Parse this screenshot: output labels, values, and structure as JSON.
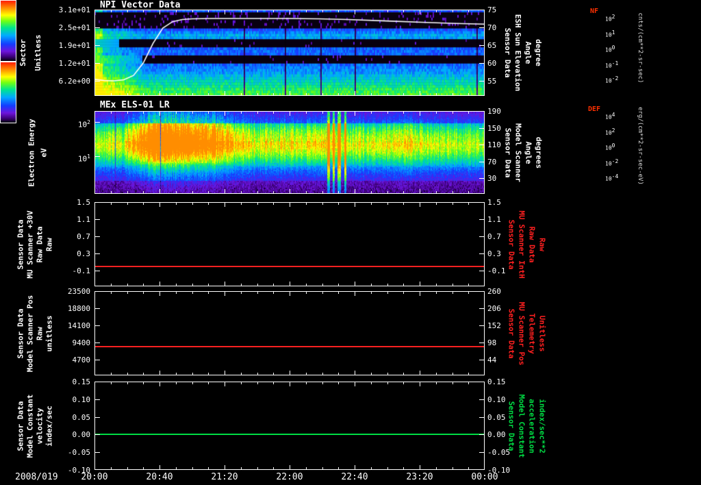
{
  "figure": {
    "date_label": "2008/019",
    "x_ticks": [
      "20:00",
      "20:40",
      "21:20",
      "22:00",
      "22:40",
      "23:20",
      "00:00"
    ]
  },
  "panels": [
    {
      "name": "npi-vector",
      "title": "NPI Vector Data",
      "left_label_lines": [
        "Sector",
        "Unitless"
      ],
      "left_ticks": [
        "3.1e+01",
        "2.5e+01",
        "1.9e+01",
        "1.2e+01",
        "6.2e+00"
      ],
      "right_ticks": [
        "75",
        "70",
        "65",
        "60",
        "55"
      ],
      "right_label_lines": [
        "Sensor Data",
        "ESH Sun Elevation",
        "Angle",
        "degree"
      ],
      "right_label_color": "#ffffff",
      "colorbar": {
        "title": "NF",
        "unit": "cnts/(cm**2-sr-sec)",
        "ticks": [
          "10^2",
          "10^1",
          "10^0",
          "10^-1",
          "10^-2"
        ]
      }
    },
    {
      "name": "els",
      "title": "MEx ELS-01 LR",
      "left_label_lines": [
        "Electron Energy",
        "eV"
      ],
      "left_ticks": [
        "10^2",
        "10^1"
      ],
      "right_ticks": [
        "190",
        "150",
        "110",
        "70",
        "30"
      ],
      "right_label_lines": [
        "Sensor Data",
        "Model Scanner",
        "Angle",
        "degrees"
      ],
      "right_label_color": "#ffffff",
      "colorbar": {
        "title": "DEF",
        "unit": "erg/(cm**2-sr-sec-eV)",
        "ticks": [
          "10^4",
          "10^2",
          "10^0",
          "10^-2",
          "10^-4"
        ]
      }
    },
    {
      "name": "mu-scanner-30v",
      "left_label_lines": [
        "Sensor Data",
        "MU Scanner +30V",
        "Raw Data",
        "Raw"
      ],
      "left_ticks": [
        "1.5",
        "1.1",
        "0.7",
        "0.3",
        "-0.1"
      ],
      "right_ticks": [
        "1.5",
        "1.1",
        "0.7",
        "0.3",
        "-0.1"
      ],
      "right_label_lines": [
        "Sensor Data",
        "MU Scanner IntH",
        "Raw Data",
        "Raw"
      ],
      "right_label_color": "#ff2020",
      "line": {
        "color": "#ff2020"
      }
    },
    {
      "name": "model-scanner-pos",
      "left_label_lines": [
        "Sensor Data",
        "Model Scanner Pos",
        "Raw",
        "unitless"
      ],
      "left_ticks": [
        "23500",
        "18800",
        "14100",
        "9400",
        "4700"
      ],
      "right_ticks": [
        "260",
        "206",
        "152",
        "98",
        "44"
      ],
      "right_label_lines": [
        "Sensor Data",
        "MU Scanner Pos",
        "Telemetry",
        "Unitless"
      ],
      "right_label_color": "#ff2020",
      "line": {
        "color": "#ff2020"
      }
    },
    {
      "name": "model-constant-velocity",
      "left_label_lines": [
        "Sensor Data",
        "Model Constant",
        "velocity",
        "index/sec"
      ],
      "left_ticks": [
        "0.15",
        "0.10",
        "0.05",
        "0.00",
        "-0.05",
        "-0.10"
      ],
      "right_ticks": [
        "0.15",
        "0.10",
        "0.05",
        "0.00",
        "-0.05",
        "-0.10"
      ],
      "right_label_lines": [
        "Sensor Data",
        "Model Constant",
        "acceleration",
        "index/sec**2"
      ],
      "right_label_color": "#00dd44",
      "line": {
        "color": "#00dd44"
      }
    }
  ],
  "chart_data": [
    {
      "type": "heatmap",
      "title": "NPI Vector Data",
      "ylabel": "Sector (Unitless)",
      "y_tick_labels": [
        "3.1e+01",
        "2.5e+01",
        "1.9e+01",
        "1.2e+01",
        "6.2e+00"
      ],
      "y2_label": "Sensor Data ESH Sun Elevation Angle (degree)",
      "y2_ticks": [
        75,
        70,
        65,
        60,
        55
      ],
      "y2_lim": [
        55,
        75
      ],
      "x_start": "2008/019 20:00",
      "x_end": "2008/020 00:00",
      "x_tick_labels": [
        "20:00",
        "20:40",
        "21:20",
        "22:00",
        "22:40",
        "23:20",
        "00:00"
      ],
      "colorbar": {
        "title": "NF",
        "unit": "cnts/(cm**2-sr-sec)",
        "scale": "log",
        "tick_labels": [
          "10^2",
          "10^1",
          "10^0",
          "10^-1",
          "10^-2"
        ]
      },
      "overlay_series": {
        "name": "ESH Sun Elevation Angle",
        "units": "degree",
        "x_hours": [
          20.0,
          20.1,
          20.2,
          20.3,
          20.4,
          20.5,
          20.6,
          20.7,
          20.8,
          20.9,
          21.0,
          21.2,
          21.5,
          22.0,
          22.3,
          22.6,
          23.0,
          23.4,
          23.7,
          24.0
        ],
        "y": [
          55.4,
          55.1,
          55.0,
          55.3,
          56.5,
          60.0,
          65.5,
          69.8,
          71.6,
          72.2,
          72.4,
          72.5,
          72.5,
          72.5,
          72.4,
          72.2,
          71.8,
          71.4,
          71.1,
          70.9
        ]
      },
      "visual_summary": "32-sector count-rate spectrogram, mostly blue/cyan; solid black bands near elevation 65 and 60; sparse purple speckles in upper sectors; bright cyan-green region at low sectors before ~20:30; white sun-elevation curve rises from ~55 deg to ~72.5 deg around 20:30 then slowly decays to ~71 deg."
    },
    {
      "type": "heatmap",
      "title": "MEx ELS-01 LR",
      "ylabel": "Electron Energy (eV)",
      "yscale": "log",
      "y_tick_labels": [
        "10^2",
        "10^1"
      ],
      "ylim": [
        1,
        210
      ],
      "y2_label": "Sensor Data Model Scanner Angle (degrees)",
      "y2_ticks": [
        190,
        150,
        110,
        70,
        30
      ],
      "colorbar": {
        "title": "DEF",
        "unit": "erg/(cm**2-sr-sec-eV)",
        "scale": "log",
        "tick_labels": [
          "10^4",
          "10^2",
          "10^0",
          "10^-2",
          "10^-4"
        ]
      },
      "visual_summary": "Electron energy-time spectrogram; persistent green band ~10-100 eV over blue noise background; brightest yellow fluxes 20:25-21:30; narrow intense vertical bursts near 22:20-22:35; weaker enhancement near 23:10."
    },
    {
      "type": "line",
      "ylabel": "Sensor Data MU Scanner +30V Raw Data Raw",
      "y_ticks": [
        1.5,
        1.1,
        0.7,
        0.3,
        -0.1
      ],
      "y2_label": "Sensor Data MU Scanner IntH Raw Data Raw",
      "y2_ticks": [
        1.5,
        1.1,
        0.7,
        0.3,
        -0.1
      ],
      "series": [
        {
          "name": "MU Scanner +30V Raw",
          "color": "#ff2020",
          "constant_value": 0.0
        }
      ]
    },
    {
      "type": "line",
      "ylabel": "Sensor Data Model Scanner Pos Raw unitless",
      "y_ticks": [
        23500,
        18800,
        14100,
        9400,
        4700
      ],
      "y2_label": "Sensor Data MU Scanner Pos Telemetry Unitless",
      "y2_ticks": [
        260,
        206,
        152,
        98,
        44
      ],
      "series": [
        {
          "name": "Model Scanner Pos Raw",
          "color": "#ff2020",
          "constant_value": 8200
        }
      ]
    },
    {
      "type": "line",
      "ylabel": "Sensor Data Model Constant velocity index/sec",
      "y_ticks": [
        0.15,
        0.1,
        0.05,
        0.0,
        -0.05,
        -0.1
      ],
      "y2_label": "Sensor Data Model Constant acceleration index/sec**2",
      "y2_ticks": [
        0.15,
        0.1,
        0.05,
        0.0,
        -0.05,
        -0.1
      ],
      "series": [
        {
          "name": "Model Constant velocity",
          "color": "#00dd44",
          "constant_value": 0.0
        }
      ]
    }
  ]
}
